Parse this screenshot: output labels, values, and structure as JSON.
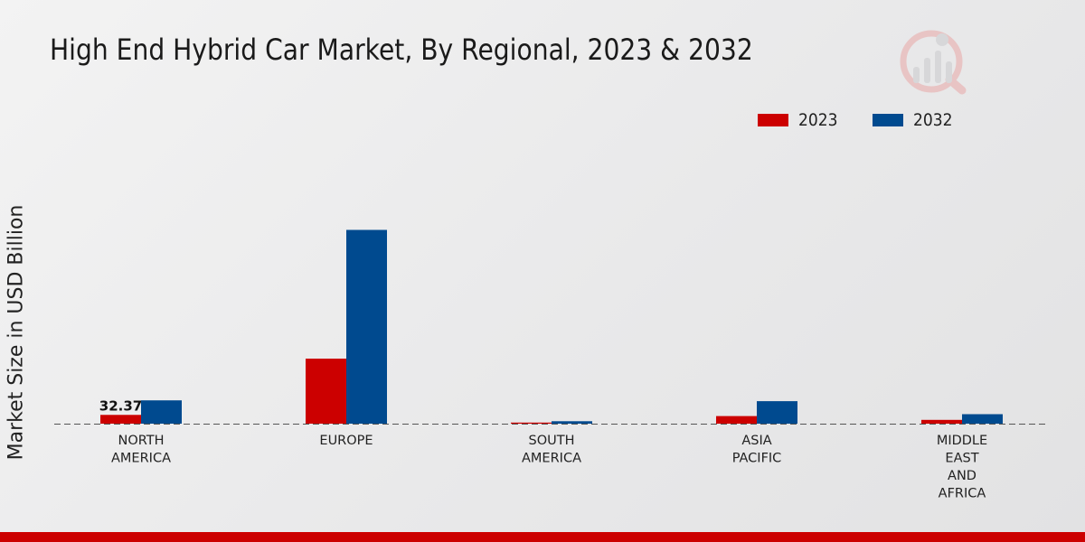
{
  "chart_data": {
    "type": "bar",
    "title": "High End Hybrid Car Market, By Regional, 2023 & 2032",
    "xlabel": "",
    "ylabel": "Market Size in USD Billion",
    "categories": [
      [
        "NORTH",
        "AMERICA"
      ],
      [
        "EUROPE"
      ],
      [
        "SOUTH",
        "AMERICA"
      ],
      [
        "ASIA",
        "PACIFIC"
      ],
      [
        "MIDDLE",
        "EAST",
        "AND",
        "AFRICA"
      ]
    ],
    "series": [
      {
        "name": "2023",
        "color": "#cc0000",
        "values": [
          32.37,
          240.0,
          1.5,
          28.0,
          14.0
        ]
      },
      {
        "name": "2032",
        "color": "#004a8f",
        "values": [
          86.0,
          715.0,
          9.0,
          83.0,
          35.0
        ]
      }
    ],
    "data_labels": [
      {
        "series": 0,
        "index": 0,
        "text": "32.37"
      }
    ],
    "ylim": [
      0,
      780
    ],
    "grid": false,
    "legend_position": "top-right"
  }
}
